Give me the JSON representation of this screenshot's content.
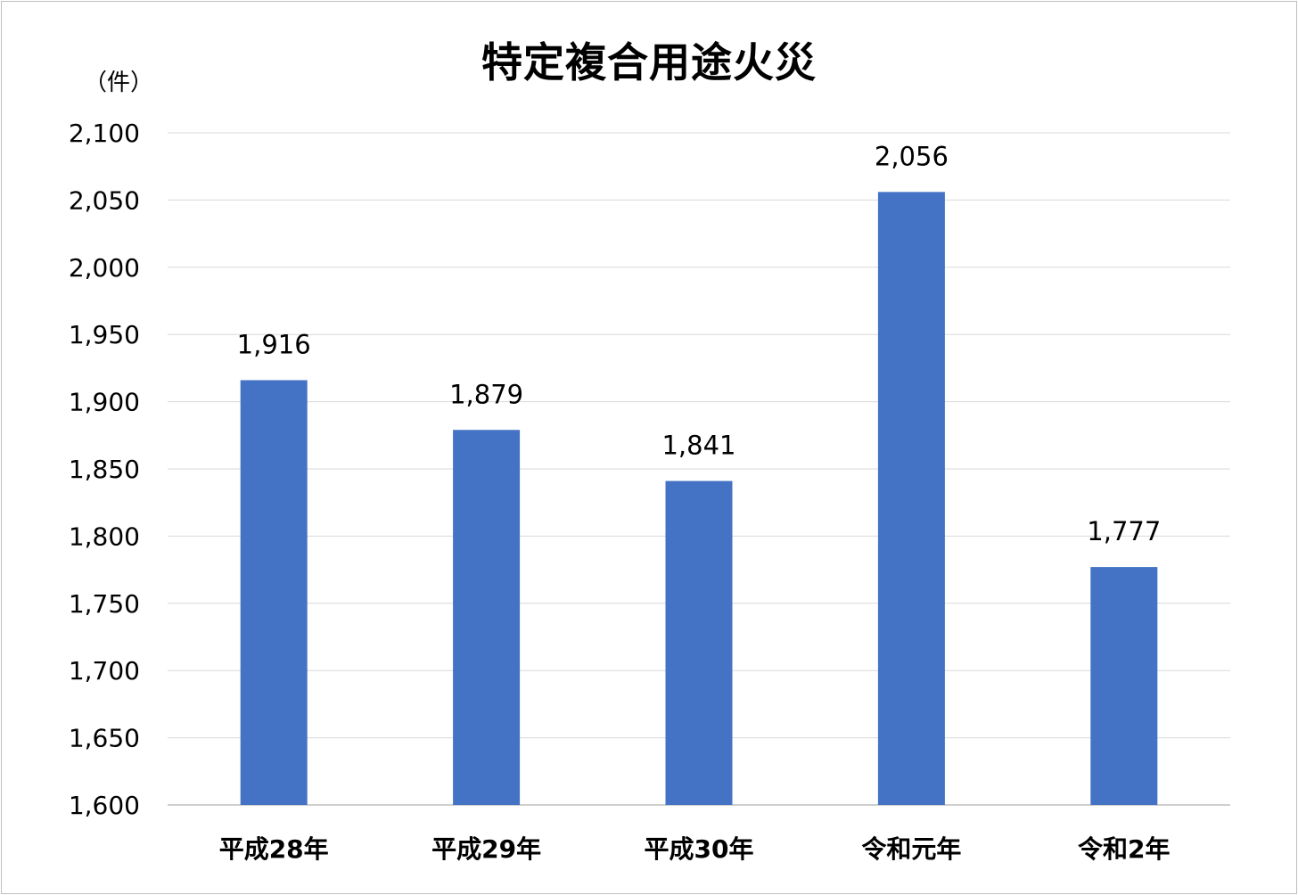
{
  "chart_data": {
    "type": "bar",
    "title": "特定複合用途火災",
    "unit_label": "（件）",
    "xlabel": "",
    "ylabel": "",
    "categories": [
      "平成28年",
      "平成29年",
      "平成30年",
      "令和元年",
      "令和2年"
    ],
    "values": [
      1916,
      1879,
      1841,
      2056,
      1777
    ],
    "value_labels": [
      "1,916",
      "1,879",
      "1,841",
      "2,056",
      "1,777"
    ],
    "ylim": [
      1600,
      2100
    ],
    "yticks": [
      1600,
      1650,
      1700,
      1750,
      1800,
      1850,
      1900,
      1950,
      2000,
      2050,
      2100
    ],
    "ytick_labels": [
      "1,600",
      "1,650",
      "1,700",
      "1,750",
      "1,800",
      "1,850",
      "1,900",
      "1,950",
      "2,000",
      "2,050",
      "2,100"
    ],
    "grid": true,
    "legend": "none",
    "bar_color": "#4472c4",
    "grid_color": "#d9d9d9"
  }
}
